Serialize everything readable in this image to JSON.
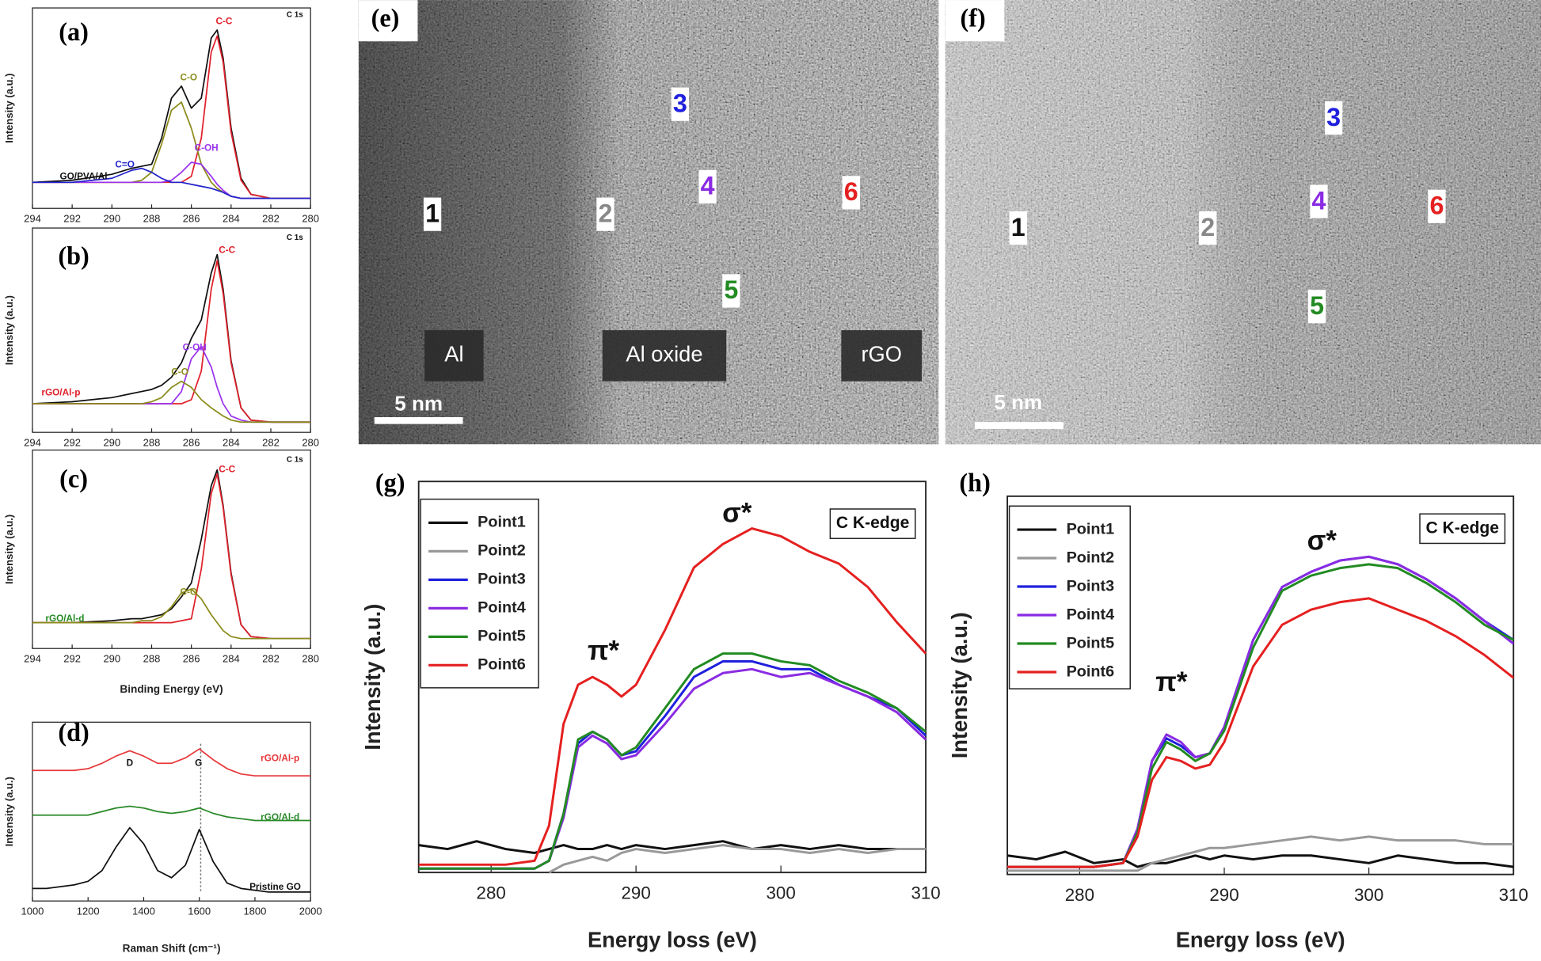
{
  "chart_data": [
    {
      "type": "line",
      "panel": "(a)",
      "y_label": "Intensity (a.u.)",
      "xlim": [
        294,
        280
      ],
      "ylim": [
        0,
        100
      ],
      "xticks": [
        294,
        292,
        290,
        288,
        286,
        284,
        282,
        280
      ],
      "x": [
        294,
        292,
        290,
        289,
        288.5,
        288,
        287.5,
        287,
        286.5,
        286,
        285.5,
        285,
        284.7,
        284.4,
        284,
        283.5,
        283,
        282,
        280
      ],
      "series": [
        {
          "color": "#111111",
          "values": [
            13,
            14,
            17,
            20,
            21,
            22,
            35,
            55,
            61,
            50,
            55,
            85,
            89,
            75,
            40,
            15,
            7,
            5,
            5
          ]
        },
        {
          "color": "#e0202a",
          "values": [
            13,
            13,
            13,
            13,
            13,
            13,
            13,
            13,
            13,
            16,
            35,
            78,
            86,
            73,
            38,
            14,
            7,
            5,
            5
          ]
        },
        {
          "color": "#8b8b1a",
          "values": [
            13,
            13,
            13,
            13,
            14,
            18,
            32,
            49,
            53,
            40,
            22,
            13,
            10,
            8,
            6,
            5,
            5,
            5,
            5
          ]
        },
        {
          "color": "#9933ee",
          "values": [
            13,
            13,
            13,
            13,
            13,
            13,
            13,
            14,
            18,
            23,
            22,
            16,
            12,
            9,
            6,
            5,
            5,
            5,
            5
          ]
        },
        {
          "color": "#2222cc",
          "values": [
            13,
            13,
            15,
            19,
            20,
            18,
            15,
            13,
            13,
            12,
            11,
            10,
            9,
            8,
            6,
            5,
            5,
            5,
            5
          ]
        }
      ],
      "annotations": [
        {
          "text": "C 1s",
          "color": "#111111"
        },
        {
          "text": "GO/PVA/Al",
          "color": "#111111"
        },
        {
          "text": "C-C",
          "color": "#e0202a"
        },
        {
          "text": "C-O",
          "color": "#8b8b1a"
        },
        {
          "text": "C=O",
          "color": "#2222cc"
        },
        {
          "text": "C-OH",
          "color": "#9933ee"
        }
      ]
    },
    {
      "type": "line",
      "panel": "(b)",
      "y_label": "Intensity (a.u.)",
      "xlim": [
        294,
        280
      ],
      "ylim": [
        0,
        100
      ],
      "xticks": [
        294,
        292,
        290,
        288,
        286,
        284,
        282,
        280
      ],
      "x": [
        294,
        292,
        290,
        289,
        288.5,
        288,
        287.5,
        287,
        286.5,
        286,
        285.5,
        285,
        284.7,
        284.4,
        284,
        283.5,
        283,
        282,
        280
      ],
      "series": [
        {
          "color": "#111111",
          "values": [
            14,
            15,
            17,
            19,
            20,
            21,
            23,
            27,
            34,
            46,
            55,
            78,
            87,
            70,
            35,
            12,
            6,
            5,
            5
          ]
        },
        {
          "color": "#e0202a",
          "values": [
            14,
            14,
            14,
            14,
            14,
            14,
            14,
            14,
            14,
            16,
            30,
            70,
            84,
            68,
            34,
            12,
            6,
            5,
            5
          ]
        },
        {
          "color": "#9933ee",
          "values": [
            14,
            14,
            14,
            14,
            14,
            14,
            14,
            14,
            20,
            36,
            42,
            32,
            22,
            14,
            8,
            6,
            5,
            5,
            5
          ]
        },
        {
          "color": "#8b8b1a",
          "values": [
            14,
            14,
            14,
            14,
            14,
            15,
            17,
            22,
            25,
            22,
            16,
            12,
            10,
            8,
            6,
            5,
            5,
            5,
            5
          ]
        }
      ],
      "annotations": [
        {
          "text": "C 1s",
          "color": "#111111"
        },
        {
          "text": "rGO/Al-p",
          "color": "#e0202a"
        },
        {
          "text": "C-C",
          "color": "#e0202a"
        },
        {
          "text": "C-OH",
          "color": "#9933ee"
        },
        {
          "text": "C-O",
          "color": "#8b8b1a"
        }
      ]
    },
    {
      "type": "line",
      "panel": "(c)",
      "y_label": "Intensity (a.u.)",
      "x_label": "Binding Energy (eV)",
      "xlim": [
        294,
        280
      ],
      "ylim": [
        0,
        100
      ],
      "xticks": [
        294,
        292,
        290,
        288,
        286,
        284,
        282,
        280
      ],
      "x": [
        294,
        292,
        290,
        289,
        288.5,
        288,
        287.5,
        287,
        286.5,
        286,
        285.5,
        285,
        284.7,
        284.4,
        284,
        283.5,
        283,
        282,
        280
      ],
      "series": [
        {
          "color": "#111111",
          "values": [
            13,
            13,
            14,
            15,
            15,
            16,
            17,
            20,
            26,
            33,
            55,
            82,
            90,
            72,
            38,
            12,
            6,
            5,
            5
          ]
        },
        {
          "color": "#e0202a",
          "values": [
            13,
            13,
            13,
            13,
            13,
            13,
            13,
            13,
            14,
            15,
            40,
            78,
            88,
            71,
            37,
            12,
            6,
            5,
            5
          ]
        },
        {
          "color": "#8b8b1a",
          "values": [
            13,
            13,
            13,
            13,
            14,
            14,
            16,
            21,
            28,
            30,
            25,
            17,
            13,
            9,
            6,
            5,
            5,
            5,
            5
          ]
        }
      ],
      "annotations": [
        {
          "text": "C 1s",
          "color": "#111111"
        },
        {
          "text": "rGO/Al-d",
          "color": "#228b22"
        },
        {
          "text": "C-C",
          "color": "#e0202a"
        },
        {
          "text": "C-O",
          "color": "#8b8b1a"
        }
      ]
    },
    {
      "type": "line",
      "panel": "(d)",
      "y_label": "Intensity (a.u.)",
      "x_label": "Raman Shift (cm⁻¹)",
      "xlim": [
        1000,
        2000
      ],
      "ylim": [
        0,
        100
      ],
      "xticks": [
        1000,
        1200,
        1400,
        1600,
        1800,
        2000
      ],
      "x": [
        1000,
        1050,
        1100,
        1150,
        1200,
        1250,
        1300,
        1350,
        1400,
        1450,
        1500,
        1550,
        1600,
        1650,
        1700,
        1750,
        1800,
        1850,
        1900,
        1950,
        2000
      ],
      "series": [
        {
          "color": "#111111",
          "values": [
            7,
            7,
            8,
            9,
            11,
            17,
            30,
            41,
            32,
            17,
            13,
            20,
            40,
            22,
            10,
            7,
            6,
            5,
            5,
            5,
            5
          ]
        },
        {
          "color": "#2a8a2a",
          "values": [
            48,
            48,
            48,
            48,
            48,
            50,
            52,
            53,
            52,
            50,
            49,
            50,
            52,
            49,
            47,
            46,
            45,
            45,
            45,
            45,
            45
          ]
        },
        {
          "color": "#e8383a",
          "values": [
            73,
            73,
            73,
            73,
            74,
            77,
            81,
            84,
            81,
            77,
            77,
            80,
            85,
            79,
            74,
            71,
            70,
            70,
            70,
            70,
            70
          ]
        }
      ],
      "annotations": [
        {
          "text": "D",
          "color": "#111111"
        },
        {
          "text": "G",
          "color": "#111111"
        },
        {
          "text": "rGO/Al-p",
          "color": "#e8383a"
        },
        {
          "text": "rGO/Al-d",
          "color": "#2a8a2a"
        },
        {
          "text": "Pristine GO",
          "color": "#111111"
        }
      ]
    },
    {
      "type": "line",
      "panel": "(g)",
      "y_label": "Intensity (a.u.)",
      "x_label": "Energy loss (eV)",
      "xlim": [
        275,
        310
      ],
      "ylim": [
        0,
        100
      ],
      "xticks": [
        280,
        290,
        300,
        310
      ],
      "x": [
        275,
        277,
        279,
        281,
        283,
        284,
        285,
        286,
        287,
        288,
        289,
        290,
        292,
        294,
        296,
        298,
        300,
        302,
        304,
        306,
        308,
        310
      ],
      "series": [
        {
          "name": "Point1",
          "color": "#111111",
          "values": [
            7,
            6,
            8,
            6,
            5,
            6,
            7,
            6,
            6,
            7,
            6,
            7,
            6,
            7,
            8,
            6,
            7,
            6,
            7,
            6,
            6,
            6
          ]
        },
        {
          "name": "Point2",
          "color": "#999999",
          "values": [
            null,
            null,
            null,
            null,
            null,
            0,
            2,
            3,
            4,
            3,
            5,
            6,
            5,
            6,
            7,
            6,
            6,
            5,
            6,
            5,
            6,
            6
          ]
        },
        {
          "name": "Point3",
          "color": "#2020dd",
          "values": [
            1,
            1,
            1,
            1,
            1,
            3,
            15,
            33,
            36,
            34,
            30,
            31,
            40,
            50,
            54,
            54,
            52,
            52,
            48,
            45,
            42,
            35
          ]
        },
        {
          "name": "Point4",
          "color": "#8a2be2",
          "values": [
            1,
            1,
            1,
            1,
            1,
            3,
            14,
            32,
            35,
            33,
            29,
            30,
            38,
            47,
            51,
            52,
            50,
            51,
            48,
            45,
            41,
            34
          ]
        },
        {
          "name": "Point5",
          "color": "#228b22",
          "values": [
            1,
            1,
            1,
            1,
            1,
            3,
            15,
            34,
            36,
            34,
            30,
            32,
            42,
            52,
            56,
            56,
            54,
            53,
            49,
            46,
            42,
            36
          ]
        },
        {
          "name": "Point6",
          "color": "#e52020",
          "values": [
            2,
            2,
            2,
            2,
            3,
            12,
            38,
            48,
            50,
            48,
            45,
            48,
            62,
            78,
            84,
            88,
            86,
            82,
            79,
            73,
            64,
            56
          ]
        }
      ],
      "annotations": [
        {
          "text": "σ*",
          "color": "#111111"
        },
        {
          "text": "π*",
          "color": "#111111"
        },
        {
          "text": "C K-edge",
          "color": "#111111"
        }
      ]
    },
    {
      "type": "line",
      "panel": "(h)",
      "y_label": "Intensity (a.u.)",
      "x_label": "Energy loss (eV)",
      "xlim": [
        275,
        310
      ],
      "ylim": [
        0,
        100
      ],
      "xticks": [
        280,
        290,
        300,
        310
      ],
      "x": [
        275,
        277,
        279,
        281,
        283,
        284,
        285,
        286,
        287,
        288,
        289,
        290,
        292,
        294,
        296,
        298,
        300,
        302,
        304,
        306,
        308,
        310
      ],
      "series": [
        {
          "name": "Point1",
          "color": "#111111",
          "values": [
            5,
            4,
            6,
            3,
            4,
            2,
            3,
            3,
            4,
            5,
            4,
            5,
            4,
            5,
            5,
            4,
            3,
            5,
            4,
            3,
            3,
            2
          ]
        },
        {
          "name": "Point2",
          "color": "#999999",
          "values": [
            1,
            1,
            1,
            1,
            1,
            1,
            3,
            4,
            5,
            6,
            7,
            7,
            8,
            9,
            10,
            9,
            10,
            9,
            9,
            9,
            8,
            8
          ]
        },
        {
          "name": "Point3",
          "color": "#2020dd",
          "values": [
            2,
            2,
            2,
            2,
            3,
            12,
            30,
            36,
            34,
            31,
            32,
            39,
            62,
            76,
            80,
            83,
            84,
            82,
            78,
            73,
            67,
            62
          ]
        },
        {
          "name": "Point4",
          "color": "#8a2be2",
          "values": [
            2,
            2,
            2,
            2,
            3,
            12,
            30,
            37,
            35,
            31,
            32,
            39,
            62,
            76,
            80,
            83,
            84,
            82,
            78,
            73,
            67,
            61
          ]
        },
        {
          "name": "Point5",
          "color": "#228b22",
          "values": [
            2,
            2,
            2,
            2,
            3,
            11,
            28,
            35,
            33,
            30,
            32,
            38,
            60,
            75,
            79,
            81,
            82,
            81,
            77,
            72,
            66,
            62
          ]
        },
        {
          "name": "Point6",
          "color": "#e52020",
          "values": [
            2,
            2,
            2,
            2,
            3,
            10,
            25,
            31,
            30,
            28,
            29,
            35,
            55,
            66,
            70,
            72,
            73,
            70,
            67,
            63,
            58,
            52
          ]
        }
      ],
      "annotations": [
        {
          "text": "σ*",
          "color": "#111111"
        },
        {
          "text": "π*",
          "color": "#111111"
        },
        {
          "text": "C K-edge",
          "color": "#111111"
        }
      ]
    }
  ],
  "images": [
    {
      "panel": "(e)",
      "points": [
        "1",
        "2",
        "3",
        "4",
        "5",
        "6"
      ],
      "regions": [
        "Al",
        "Al oxide",
        "rGO"
      ],
      "scale_bar": "5 nm"
    },
    {
      "panel": "(f)",
      "points": [
        "1",
        "2",
        "3",
        "4",
        "5",
        "6"
      ],
      "scale_bar": "5 nm"
    }
  ]
}
